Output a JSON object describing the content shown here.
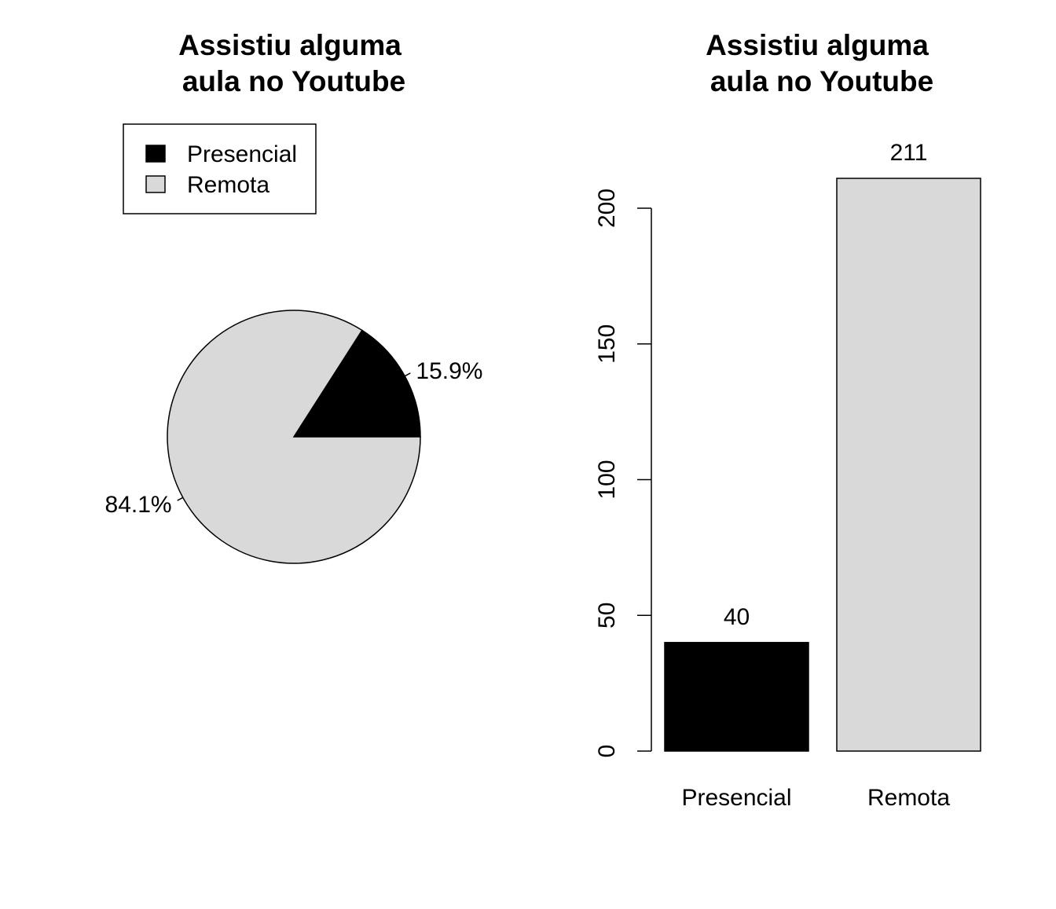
{
  "chart_data": [
    {
      "type": "pie",
      "title_lines": [
        "Assistiu alguma",
        "aula no Youtube"
      ],
      "slices": [
        {
          "label": "Presencial",
          "value": 40,
          "percent_label": "15.9%",
          "color": "#000000"
        },
        {
          "label": "Remota",
          "value": 211,
          "percent_label": "84.1%",
          "color": "#d9d9d9"
        }
      ],
      "legend": {
        "placement": "top-left",
        "entries": [
          {
            "label": "Presencial",
            "color": "#000000"
          },
          {
            "label": "Remota",
            "color": "#d9d9d9"
          }
        ]
      }
    },
    {
      "type": "bar",
      "title_lines": [
        "Assistiu alguma",
        "aula no Youtube"
      ],
      "categories": [
        "Presencial",
        "Remota"
      ],
      "values": [
        40,
        211
      ],
      "value_labels": [
        "40",
        "211"
      ],
      "colors": [
        "#000000",
        "#d9d9d9"
      ],
      "yticks": [
        0,
        50,
        100,
        150,
        200
      ],
      "ytick_labels": [
        "0",
        "50",
        "100",
        "150",
        "200"
      ],
      "ylim": [
        0,
        211
      ],
      "grid": false
    }
  ]
}
